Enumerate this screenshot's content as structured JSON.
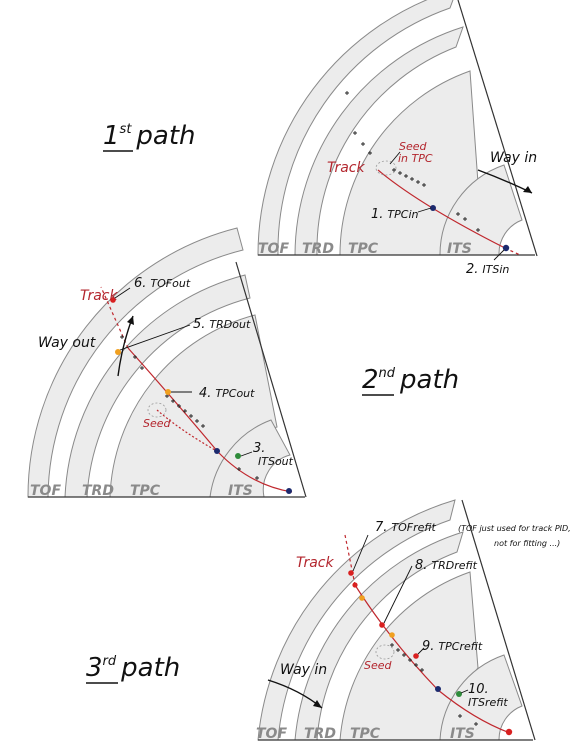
{
  "colors": {
    "track": "#c0282e",
    "detector_fill": "#ececec",
    "detector_stroke": "#8a8a8a",
    "point_orange": "#f0a020",
    "point_red": "#d92020",
    "point_green": "#2e8b3a",
    "point_navy": "#1c2a6e"
  },
  "panels": [
    {
      "id": "path1",
      "heading": {
        "number": "1",
        "suffix": "st",
        "word": "path"
      },
      "detectors": [
        "TOF",
        "TRD",
        "TPC",
        "ITS"
      ],
      "track_label": "Track",
      "seed_label_line1": "Seed",
      "seed_label_line2": "in TPC",
      "direction_label": "Way in",
      "points": [
        {
          "num": "1.",
          "name": "TPCin",
          "color": "navy"
        },
        {
          "num": "2.",
          "name": "ITSin",
          "color": "navy"
        }
      ]
    },
    {
      "id": "path2",
      "heading": {
        "number": "2",
        "suffix": "nd",
        "word": "path"
      },
      "detectors": [
        "TOF",
        "TRD",
        "TPC",
        "ITS"
      ],
      "track_label": "Track",
      "seed_label": "Seed",
      "direction_label": "Way out",
      "points": [
        {
          "num": "3.",
          "name": "ITSout",
          "color": "green"
        },
        {
          "num": "4.",
          "name": "TPCout",
          "color": "orange"
        },
        {
          "num": "5.",
          "name": "TRDout",
          "color": "orange"
        },
        {
          "num": "6.",
          "name": "TOFout",
          "color": "red"
        }
      ]
    },
    {
      "id": "path3",
      "heading": {
        "number": "3",
        "suffix": "rd",
        "word": "path"
      },
      "detectors": [
        "TOF",
        "TRD",
        "TPC",
        "ITS"
      ],
      "track_label": "Track",
      "seed_label": "Seed",
      "direction_label": "Way in",
      "note_line1": "(TOF just used for track PID,",
      "note_line2": "not for fitting ...)",
      "points": [
        {
          "num": "7.",
          "name": "TOFrefit",
          "color": "red"
        },
        {
          "num": "8.",
          "name": "TRDrefit",
          "color": "red"
        },
        {
          "num": "9.",
          "name": "TPCrefit",
          "color": "red"
        },
        {
          "num": "10.",
          "name": "ITSrefit",
          "color": "green"
        }
      ]
    }
  ]
}
